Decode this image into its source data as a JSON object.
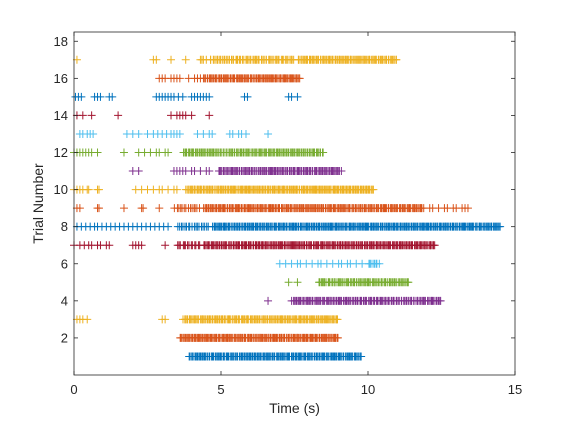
{
  "chart_data": {
    "type": "scatter",
    "marker": "+",
    "title": "",
    "xlabel": "Time (s)",
    "ylabel": "Trial Number",
    "xlim": [
      0,
      15
    ],
    "ylim": [
      0,
      18.5
    ],
    "xticks": [
      0,
      5,
      10,
      15
    ],
    "yticks": [
      2,
      4,
      6,
      8,
      10,
      12,
      14,
      16,
      18
    ],
    "grid": false,
    "series": [
      {
        "trial": 1,
        "color": "#0072BD",
        "runs": [
          [
            3.9,
            9.8,
            160
          ]
        ],
        "points": []
      },
      {
        "trial": 2,
        "color": "#D95319",
        "runs": [
          [
            3.6,
            9.0,
            150
          ]
        ],
        "points": []
      },
      {
        "trial": 3,
        "color": "#EDB120",
        "runs": [
          [
            3.7,
            9.0,
            140
          ]
        ],
        "points": [
          0.1,
          0.2,
          0.3,
          0.45,
          3.0,
          3.1
        ]
      },
      {
        "trial": 4,
        "color": "#7E2F8E",
        "runs": [
          [
            7.4,
            12.5,
            120
          ]
        ],
        "points": [
          6.6
        ]
      },
      {
        "trial": 5,
        "color": "#77AC30",
        "runs": [
          [
            8.3,
            11.4,
            70
          ]
        ],
        "points": [
          7.3,
          7.6
        ]
      },
      {
        "trial": 6,
        "color": "#4DBEEE",
        "runs": [
          [
            10.0,
            10.4,
            8
          ]
        ],
        "points": [
          7.0,
          7.2,
          7.4,
          7.6,
          7.7,
          7.9,
          8.1,
          8.3,
          8.4,
          8.6,
          8.8,
          9.0,
          9.1,
          9.3,
          9.4,
          9.6,
          9.8
        ]
      },
      {
        "trial": 7,
        "color": "#A2142F",
        "runs": [
          [
            4.4,
            12.3,
            200
          ],
          [
            3.5,
            4.3,
            14
          ]
        ],
        "points": [
          0.0,
          0.2,
          0.35,
          0.5,
          0.6,
          0.8,
          0.9,
          1.1,
          1.2,
          2.0,
          2.1,
          2.2,
          2.3,
          3.1
        ]
      },
      {
        "trial": 8,
        "color": "#0072BD",
        "runs": [
          [
            4.7,
            14.5,
            260
          ],
          [
            3.5,
            4.6,
            18
          ]
        ],
        "points": [
          0.1,
          0.25,
          0.4,
          0.55,
          0.7,
          0.8,
          0.95,
          1.1,
          1.25,
          1.4,
          1.55,
          1.7,
          1.85,
          2.0,
          2.15,
          2.3,
          2.45,
          2.6,
          2.75,
          2.9,
          3.05,
          3.2
        ]
      },
      {
        "trial": 9,
        "color": "#D95319",
        "runs": [
          [
            4.4,
            11.9,
            200
          ],
          [
            3.4,
            4.3,
            14
          ]
        ],
        "points": [
          0.1,
          0.2,
          0.8,
          0.85,
          1.7,
          2.3,
          2.35,
          2.9,
          12.1,
          12.2,
          12.4,
          12.6,
          12.7,
          12.9,
          13.0,
          13.2,
          13.3,
          13.4
        ]
      },
      {
        "trial": 10,
        "color": "#EDB120",
        "runs": [
          [
            3.8,
            10.2,
            180
          ]
        ],
        "points": [
          0.0,
          0.1,
          0.2,
          0.3,
          0.45,
          0.5,
          0.8,
          0.85,
          2.1,
          2.3,
          2.5,
          2.7,
          2.9,
          3.0,
          3.2,
          3.4,
          3.5
        ]
      },
      {
        "trial": 11,
        "color": "#7E2F8E",
        "runs": [
          [
            4.9,
            9.1,
            110
          ]
        ],
        "points": [
          2.0,
          2.2,
          3.4,
          3.5,
          3.6,
          3.7,
          3.8,
          4.0,
          4.1,
          4.3,
          4.5,
          4.6
        ]
      },
      {
        "trial": 12,
        "color": "#77AC30",
        "runs": [
          [
            3.7,
            8.5,
            120
          ]
        ],
        "points": [
          0.0,
          0.1,
          0.2,
          0.3,
          0.4,
          0.5,
          0.6,
          0.8,
          1.7,
          2.2,
          2.4,
          2.6,
          2.8,
          2.9,
          3.1,
          3.2
        ]
      },
      {
        "trial": 13,
        "color": "#4DBEEE",
        "runs": [],
        "points": [
          0.2,
          0.3,
          0.45,
          0.55,
          0.65,
          1.8,
          2.0,
          2.2,
          2.5,
          2.7,
          2.85,
          3.0,
          3.15,
          3.3,
          3.4,
          3.5,
          3.6,
          4.2,
          4.4,
          4.6,
          4.7,
          5.3,
          5.4,
          5.6,
          5.7,
          5.85,
          6.6
        ]
      },
      {
        "trial": 14,
        "color": "#A2142F",
        "runs": [],
        "points": [
          0.1,
          0.3,
          0.6,
          1.5,
          3.3,
          3.5,
          3.6,
          3.7,
          3.8,
          4.0,
          4.6
        ]
      },
      {
        "trial": 15,
        "color": "#0072BD",
        "runs": [],
        "points": [
          0.05,
          0.15,
          0.25,
          0.7,
          0.8,
          0.9,
          1.2,
          1.3,
          2.8,
          2.9,
          3.0,
          3.1,
          3.2,
          3.3,
          3.4,
          3.55,
          3.7,
          4.0,
          4.1,
          4.2,
          4.3,
          4.4,
          4.5,
          4.6,
          5.8,
          5.9,
          7.3,
          7.4,
          7.6
        ]
      },
      {
        "trial": 16,
        "color": "#D95319",
        "runs": [
          [
            4.4,
            7.7,
            90
          ]
        ],
        "points": [
          2.9,
          3.0,
          3.1,
          3.3,
          3.4,
          3.5,
          3.6,
          3.9,
          4.1,
          4.2,
          4.3
        ]
      },
      {
        "trial": 17,
        "color": "#EDB120",
        "runs": [
          [
            7.6,
            11.0,
            90
          ],
          [
            4.6,
            7.5,
            60
          ]
        ],
        "points": [
          0.1,
          2.7,
          2.8,
          3.3,
          3.8,
          4.3,
          4.35,
          4.4,
          4.5
        ]
      }
    ]
  }
}
